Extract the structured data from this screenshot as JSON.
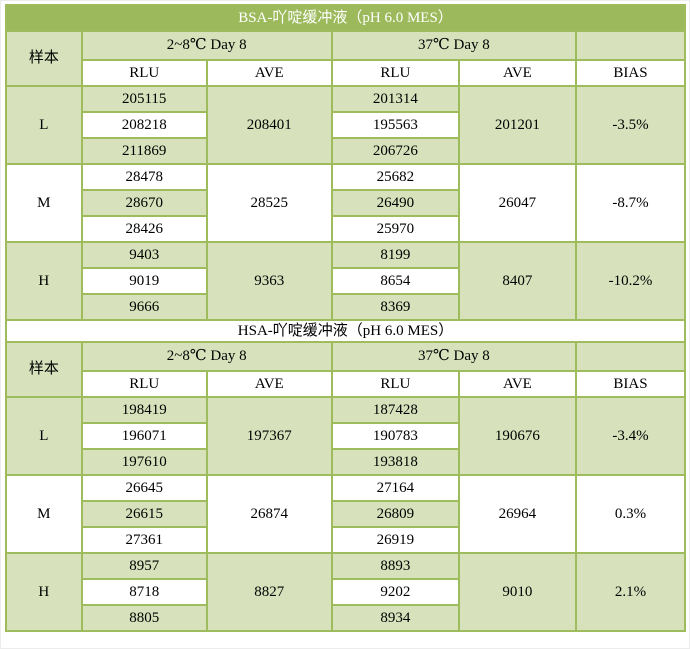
{
  "colors": {
    "header_green": "#9cba5c",
    "cell_green": "#d7e2bc",
    "border_green": "#9fbc5c",
    "title_text": "#ffffff",
    "body_text": "#000000"
  },
  "tables": [
    {
      "title": "BSA-吖啶缓冲液（pH 6.0 MES）",
      "sample_header": "样本",
      "col_groups": [
        {
          "label": "2~8℃  Day 8"
        },
        {
          "label": "37℃  Day 8"
        }
      ],
      "sub_headers": [
        "RLU",
        "AVE",
        "RLU",
        "AVE",
        "BIAS"
      ],
      "rows": [
        {
          "sample": "L",
          "rlu_cold": [
            "205115",
            "208218",
            "211869"
          ],
          "ave_cold": "208401",
          "rlu_warm": [
            "201314",
            "195563",
            "206726"
          ],
          "ave_warm": "201201",
          "bias": "-3.5%"
        },
        {
          "sample": "M",
          "rlu_cold": [
            "28478",
            "28670",
            "28426"
          ],
          "ave_cold": "28525",
          "rlu_warm": [
            "25682",
            "26490",
            "25970"
          ],
          "ave_warm": "26047",
          "bias": "-8.7%"
        },
        {
          "sample": "H",
          "rlu_cold": [
            "9403",
            "9019",
            "9666"
          ],
          "ave_cold": "9363",
          "rlu_warm": [
            "8199",
            "8654",
            "8369"
          ],
          "ave_warm": "8407",
          "bias": "-10.2%"
        }
      ]
    },
    {
      "title": "HSA-吖啶缓冲液（pH 6.0 MES）",
      "sample_header": "样本",
      "col_groups": [
        {
          "label": "2~8℃  Day 8"
        },
        {
          "label": "37℃  Day 8"
        }
      ],
      "sub_headers": [
        "RLU",
        "AVE",
        "RLU",
        "AVE",
        "BIAS"
      ],
      "rows": [
        {
          "sample": "L",
          "rlu_cold": [
            "198419",
            "196071",
            "197610"
          ],
          "ave_cold": "197367",
          "rlu_warm": [
            "187428",
            "190783",
            "193818"
          ],
          "ave_warm": "190676",
          "bias": "-3.4%"
        },
        {
          "sample": "M",
          "rlu_cold": [
            "26645",
            "26615",
            "27361"
          ],
          "ave_cold": "26874",
          "rlu_warm": [
            "27164",
            "26809",
            "26919"
          ],
          "ave_warm": "26964",
          "bias": "0.3%"
        },
        {
          "sample": "H",
          "rlu_cold": [
            "8957",
            "8718",
            "8805"
          ],
          "ave_cold": "8827",
          "rlu_warm": [
            "8893",
            "9202",
            "8934"
          ],
          "ave_warm": "9010",
          "bias": "2.1%"
        }
      ]
    }
  ]
}
